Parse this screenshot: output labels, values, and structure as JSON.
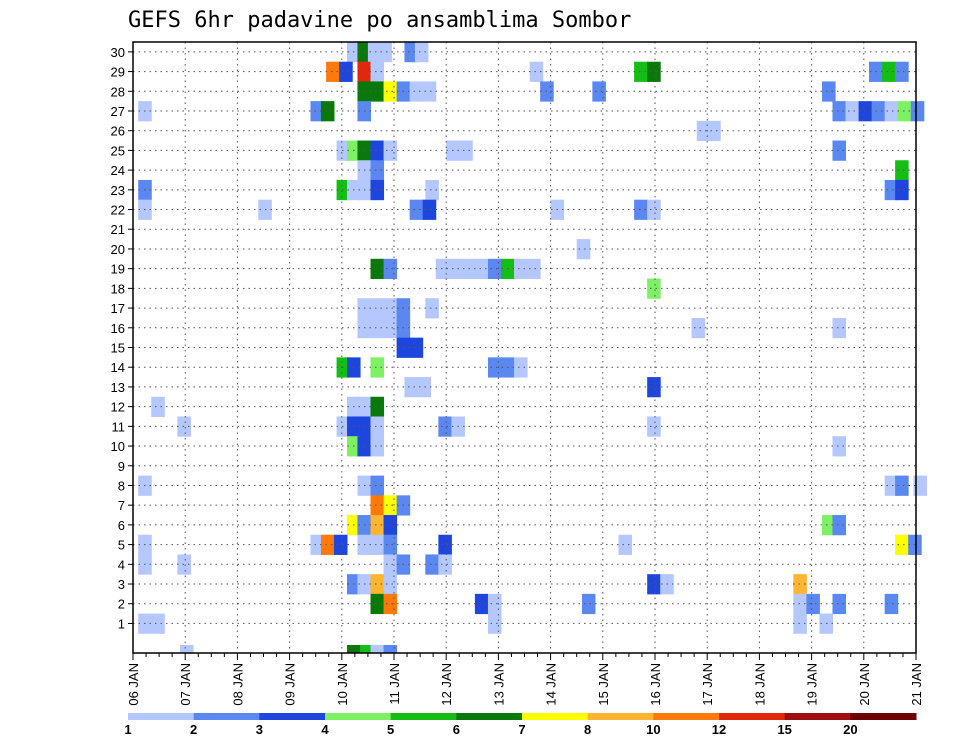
{
  "chart_data": {
    "type": "heatmap",
    "title": "GEFS 6hr padavine po ansamblima Sombor",
    "y_ticks": [
      "1",
      "2",
      "3",
      "4",
      "5",
      "6",
      "7",
      "8",
      "9",
      "10",
      "11",
      "12",
      "13",
      "14",
      "15",
      "16",
      "17",
      "18",
      "19",
      "20",
      "21",
      "22",
      "23",
      "24",
      "25",
      "26",
      "27",
      "28",
      "29",
      "30"
    ],
    "y_range": [
      0,
      30
    ],
    "x_ticks": [
      "06 JAN",
      "07 JAN",
      "08 JAN",
      "09 JAN",
      "10 JAN",
      "11 JAN",
      "12 JAN",
      "13 JAN",
      "14 JAN",
      "15 JAN",
      "16 JAN",
      "17 JAN",
      "18 JAN",
      "19 JAN",
      "20 JAN",
      "21 JAN"
    ],
    "x_range_days": [
      0,
      15
    ],
    "grid": true,
    "levels": [
      "1",
      "2",
      "3",
      "4",
      "5",
      "6",
      "7",
      "8",
      "10",
      "12",
      "15",
      "20"
    ],
    "colors": [
      "#b4c8ff",
      "#5a87f0",
      "#1e46dc",
      "#7df064",
      "#14be14",
      "#0a780a",
      "#ffff00",
      "#ffb432",
      "#ff780a",
      "#e1280a",
      "#a00f0f",
      "#6e0000"
    ],
    "cells": [
      {
        "ens": 30,
        "t": [
          [
            4.1,
            1
          ],
          [
            4.3,
            6
          ],
          [
            4.5,
            1
          ],
          [
            4.7,
            1
          ],
          [
            5.2,
            2
          ],
          [
            5.4,
            1
          ]
        ]
      },
      {
        "ens": 29,
        "t": [
          [
            3.7,
            9
          ],
          [
            3.95,
            3
          ],
          [
            4.3,
            10
          ],
          [
            4.55,
            1
          ],
          [
            7.6,
            1
          ],
          [
            9.6,
            5
          ],
          [
            9.85,
            6
          ],
          [
            14.1,
            2
          ],
          [
            14.35,
            5
          ],
          [
            14.6,
            2
          ]
        ]
      },
      {
        "ens": 28,
        "t": [
          [
            4.3,
            6
          ],
          [
            4.55,
            6
          ],
          [
            4.8,
            7
          ],
          [
            5.05,
            2
          ],
          [
            5.3,
            1
          ],
          [
            5.55,
            1
          ],
          [
            7.8,
            2
          ],
          [
            8.8,
            2
          ],
          [
            13.2,
            2
          ]
        ]
      },
      {
        "ens": 27,
        "t": [
          [
            0.1,
            1
          ],
          [
            3.4,
            2
          ],
          [
            3.6,
            6
          ],
          [
            4.3,
            2
          ],
          [
            13.4,
            2
          ],
          [
            13.65,
            1
          ],
          [
            13.9,
            3
          ],
          [
            14.15,
            2
          ],
          [
            14.4,
            1
          ],
          [
            14.65,
            4
          ],
          [
            14.9,
            2
          ]
        ]
      },
      {
        "ens": 26,
        "t": [
          [
            10.8,
            1
          ],
          [
            11.0,
            1
          ]
        ]
      },
      {
        "ens": 25,
        "t": [
          [
            3.9,
            1
          ],
          [
            4.1,
            4
          ],
          [
            4.3,
            6
          ],
          [
            4.55,
            3
          ],
          [
            4.8,
            1
          ],
          [
            6.0,
            1
          ],
          [
            6.25,
            1
          ],
          [
            13.4,
            2
          ]
        ]
      },
      {
        "ens": 24,
        "t": [
          [
            4.3,
            1
          ],
          [
            4.55,
            2
          ],
          [
            14.6,
            5
          ]
        ]
      },
      {
        "ens": 23,
        "t": [
          [
            0.1,
            2
          ],
          [
            3.9,
            5
          ],
          [
            4.1,
            1
          ],
          [
            4.3,
            1
          ],
          [
            4.55,
            3
          ],
          [
            5.6,
            1
          ],
          [
            14.4,
            2
          ],
          [
            14.6,
            3
          ]
        ]
      },
      {
        "ens": 22,
        "t": [
          [
            0.1,
            1
          ],
          [
            2.4,
            1
          ],
          [
            5.3,
            2
          ],
          [
            5.55,
            3
          ],
          [
            8.0,
            1
          ],
          [
            9.6,
            2
          ],
          [
            9.85,
            1
          ]
        ]
      },
      {
        "ens": 20,
        "t": [
          [
            8.5,
            1
          ]
        ]
      },
      {
        "ens": 19,
        "t": [
          [
            4.55,
            6
          ],
          [
            4.8,
            2
          ],
          [
            5.8,
            1
          ],
          [
            6.05,
            1
          ],
          [
            6.3,
            1
          ],
          [
            6.55,
            1
          ],
          [
            6.8,
            2
          ],
          [
            7.05,
            5
          ],
          [
            7.3,
            1
          ],
          [
            7.55,
            1
          ]
        ]
      },
      {
        "ens": 18,
        "t": [
          [
            9.85,
            4
          ]
        ]
      },
      {
        "ens": 17,
        "t": [
          [
            4.3,
            1
          ],
          [
            4.55,
            1
          ],
          [
            4.8,
            1
          ],
          [
            5.05,
            2
          ],
          [
            5.6,
            1
          ]
        ]
      },
      {
        "ens": 16,
        "t": [
          [
            4.3,
            1
          ],
          [
            4.55,
            1
          ],
          [
            4.8,
            1
          ],
          [
            5.05,
            2
          ],
          [
            10.7,
            1
          ],
          [
            13.4,
            1
          ]
        ]
      },
      {
        "ens": 15,
        "t": [
          [
            5.05,
            3
          ],
          [
            5.3,
            3
          ]
        ]
      },
      {
        "ens": 14,
        "t": [
          [
            3.9,
            5
          ],
          [
            4.1,
            3
          ],
          [
            4.55,
            4
          ],
          [
            6.8,
            2
          ],
          [
            7.05,
            2
          ],
          [
            7.3,
            1
          ]
        ]
      },
      {
        "ens": 13,
        "t": [
          [
            5.2,
            1
          ],
          [
            5.45,
            1
          ],
          [
            9.85,
            3
          ]
        ]
      },
      {
        "ens": 12,
        "t": [
          [
            0.35,
            1
          ],
          [
            4.1,
            1
          ],
          [
            4.3,
            1
          ],
          [
            4.55,
            6
          ]
        ]
      },
      {
        "ens": 11,
        "t": [
          [
            0.85,
            1
          ],
          [
            3.9,
            1
          ],
          [
            4.1,
            3
          ],
          [
            4.3,
            3
          ],
          [
            4.55,
            1
          ],
          [
            5.85,
            2
          ],
          [
            6.1,
            1
          ],
          [
            9.85,
            1
          ]
        ]
      },
      {
        "ens": 10,
        "t": [
          [
            4.1,
            4
          ],
          [
            4.3,
            3
          ],
          [
            4.55,
            1
          ],
          [
            13.4,
            1
          ]
        ]
      },
      {
        "ens": 8,
        "t": [
          [
            0.1,
            1
          ],
          [
            4.3,
            1
          ],
          [
            4.55,
            2
          ],
          [
            14.4,
            1
          ],
          [
            14.6,
            2
          ],
          [
            14.95,
            1
          ]
        ]
      },
      {
        "ens": 7,
        "t": [
          [
            4.55,
            9
          ],
          [
            4.8,
            7
          ],
          [
            5.05,
            2
          ]
        ]
      },
      {
        "ens": 6,
        "t": [
          [
            4.1,
            7
          ],
          [
            4.3,
            2
          ],
          [
            4.55,
            8
          ],
          [
            4.8,
            3
          ],
          [
            13.2,
            4
          ],
          [
            13.4,
            2
          ]
        ]
      },
      {
        "ens": 5,
        "t": [
          [
            0.1,
            1
          ],
          [
            3.4,
            1
          ],
          [
            3.6,
            9
          ],
          [
            3.85,
            3
          ],
          [
            4.3,
            1
          ],
          [
            4.55,
            1
          ],
          [
            4.8,
            2
          ],
          [
            5.85,
            3
          ],
          [
            9.3,
            1
          ],
          [
            14.6,
            7
          ],
          [
            14.85,
            2
          ]
        ]
      },
      {
        "ens": 4,
        "t": [
          [
            0.1,
            1
          ],
          [
            0.85,
            1
          ],
          [
            4.8,
            1
          ],
          [
            5.05,
            2
          ],
          [
            5.6,
            2
          ],
          [
            5.85,
            1
          ]
        ]
      },
      {
        "ens": 3,
        "t": [
          [
            4.1,
            2
          ],
          [
            4.3,
            1
          ],
          [
            4.55,
            8
          ],
          [
            4.8,
            1
          ],
          [
            9.85,
            3
          ],
          [
            10.1,
            1
          ],
          [
            12.65,
            8
          ]
        ]
      },
      {
        "ens": 2,
        "t": [
          [
            4.55,
            6
          ],
          [
            4.8,
            9
          ],
          [
            6.55,
            3
          ],
          [
            6.8,
            1
          ],
          [
            8.6,
            2
          ],
          [
            12.65,
            1
          ],
          [
            12.9,
            2
          ],
          [
            13.4,
            2
          ],
          [
            14.4,
            2
          ]
        ]
      },
      {
        "ens": 1,
        "t": [
          [
            0.1,
            1
          ],
          [
            0.35,
            1
          ],
          [
            6.8,
            1
          ],
          [
            12.65,
            1
          ],
          [
            13.15,
            1
          ]
        ]
      }
    ],
    "bottom_strip": [
      [
        0.9,
        1
      ],
      [
        4.1,
        6
      ],
      [
        4.35,
        5
      ],
      [
        4.55,
        1
      ],
      [
        4.8,
        2
      ]
    ]
  }
}
